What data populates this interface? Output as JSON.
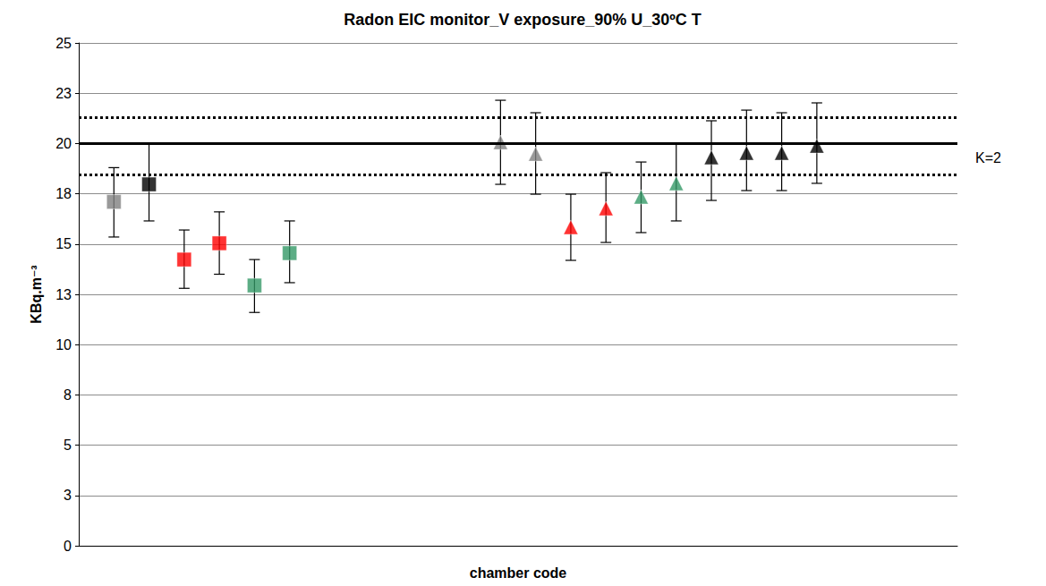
{
  "chart_data": {
    "type": "scatter",
    "title": "Radon EIC monitor_V exposure_90% U_30ºC T",
    "x_label": "chamber code",
    "y_label": "KBq.m⁻³",
    "xlim": [
      0,
      25
    ],
    "ylim": [
      0,
      25
    ],
    "yticks": [
      0,
      {
        "value": 2.5,
        "label": "3"
      },
      5,
      {
        "value": 7.5,
        "label": "8"
      },
      10,
      {
        "value": 12.5,
        "label": "13"
      },
      15,
      {
        "value": 17.5,
        "label": "18"
      },
      20,
      {
        "value": 22.5,
        "label": "23"
      },
      25
    ],
    "grid": true,
    "tick_labels": "y",
    "series": [
      {
        "color": "#808080",
        "marker": "square",
        "x": [
          1
        ],
        "values": [
          17.1
        ],
        "error_bars": [
          [
            15.35,
            18.8
          ]
        ]
      },
      {
        "color": "#000000",
        "marker": "square",
        "x": [
          2
        ],
        "values": [
          17.97
        ],
        "error_bars": [
          [
            16.15,
            19.97
          ]
        ]
      },
      {
        "color": "#ff0000",
        "marker": "square",
        "x": [
          3,
          4
        ],
        "values": [
          14.23,
          15.04
        ],
        "error_bars": [
          [
            12.8,
            15.7
          ],
          [
            13.5,
            16.6
          ]
        ]
      },
      {
        "color": "#339966",
        "marker": "square",
        "x": [
          5,
          6
        ],
        "values": [
          12.94,
          14.55
        ],
        "error_bars": [
          [
            11.6,
            14.23
          ],
          [
            13.08,
            16.15
          ]
        ]
      },
      {
        "color": "#808080",
        "marker": "triangle",
        "x": [
          12,
          13
        ],
        "values": [
          20.06,
          19.48
        ],
        "error_bars": [
          [
            17.97,
            22.15
          ],
          [
            17.48,
            21.53
          ]
        ]
      },
      {
        "color": "#ff0000",
        "marker": "triangle",
        "x": [
          14,
          15
        ],
        "values": [
          15.84,
          16.77
        ],
        "error_bars": [
          [
            14.19,
            17.48
          ],
          [
            15.08,
            18.55
          ]
        ]
      },
      {
        "color": "#339966",
        "marker": "triangle",
        "x": [
          16,
          17
        ],
        "values": [
          17.35,
          18.02
        ],
        "error_bars": [
          [
            15.57,
            19.08
          ],
          [
            16.15,
            19.97
          ]
        ]
      },
      {
        "color": "#000000",
        "marker": "triangle",
        "x": [
          18,
          19,
          20,
          21
        ],
        "values": [
          19.31,
          19.53,
          19.53,
          19.88
        ],
        "error_bars": [
          [
            17.17,
            21.13
          ],
          [
            17.66,
            21.66
          ],
          [
            17.66,
            21.53
          ],
          [
            18.02,
            22.02
          ]
        ]
      }
    ],
    "reference_lines": [
      {
        "value": 20.02,
        "line_style": "solid",
        "color": "#000000"
      },
      {
        "value": 21.31,
        "line_style": "dotted",
        "color": "#000000"
      },
      {
        "value": 18.46,
        "line_style": "dotted",
        "color": "#000000"
      }
    ],
    "annotation": "K=2"
  }
}
